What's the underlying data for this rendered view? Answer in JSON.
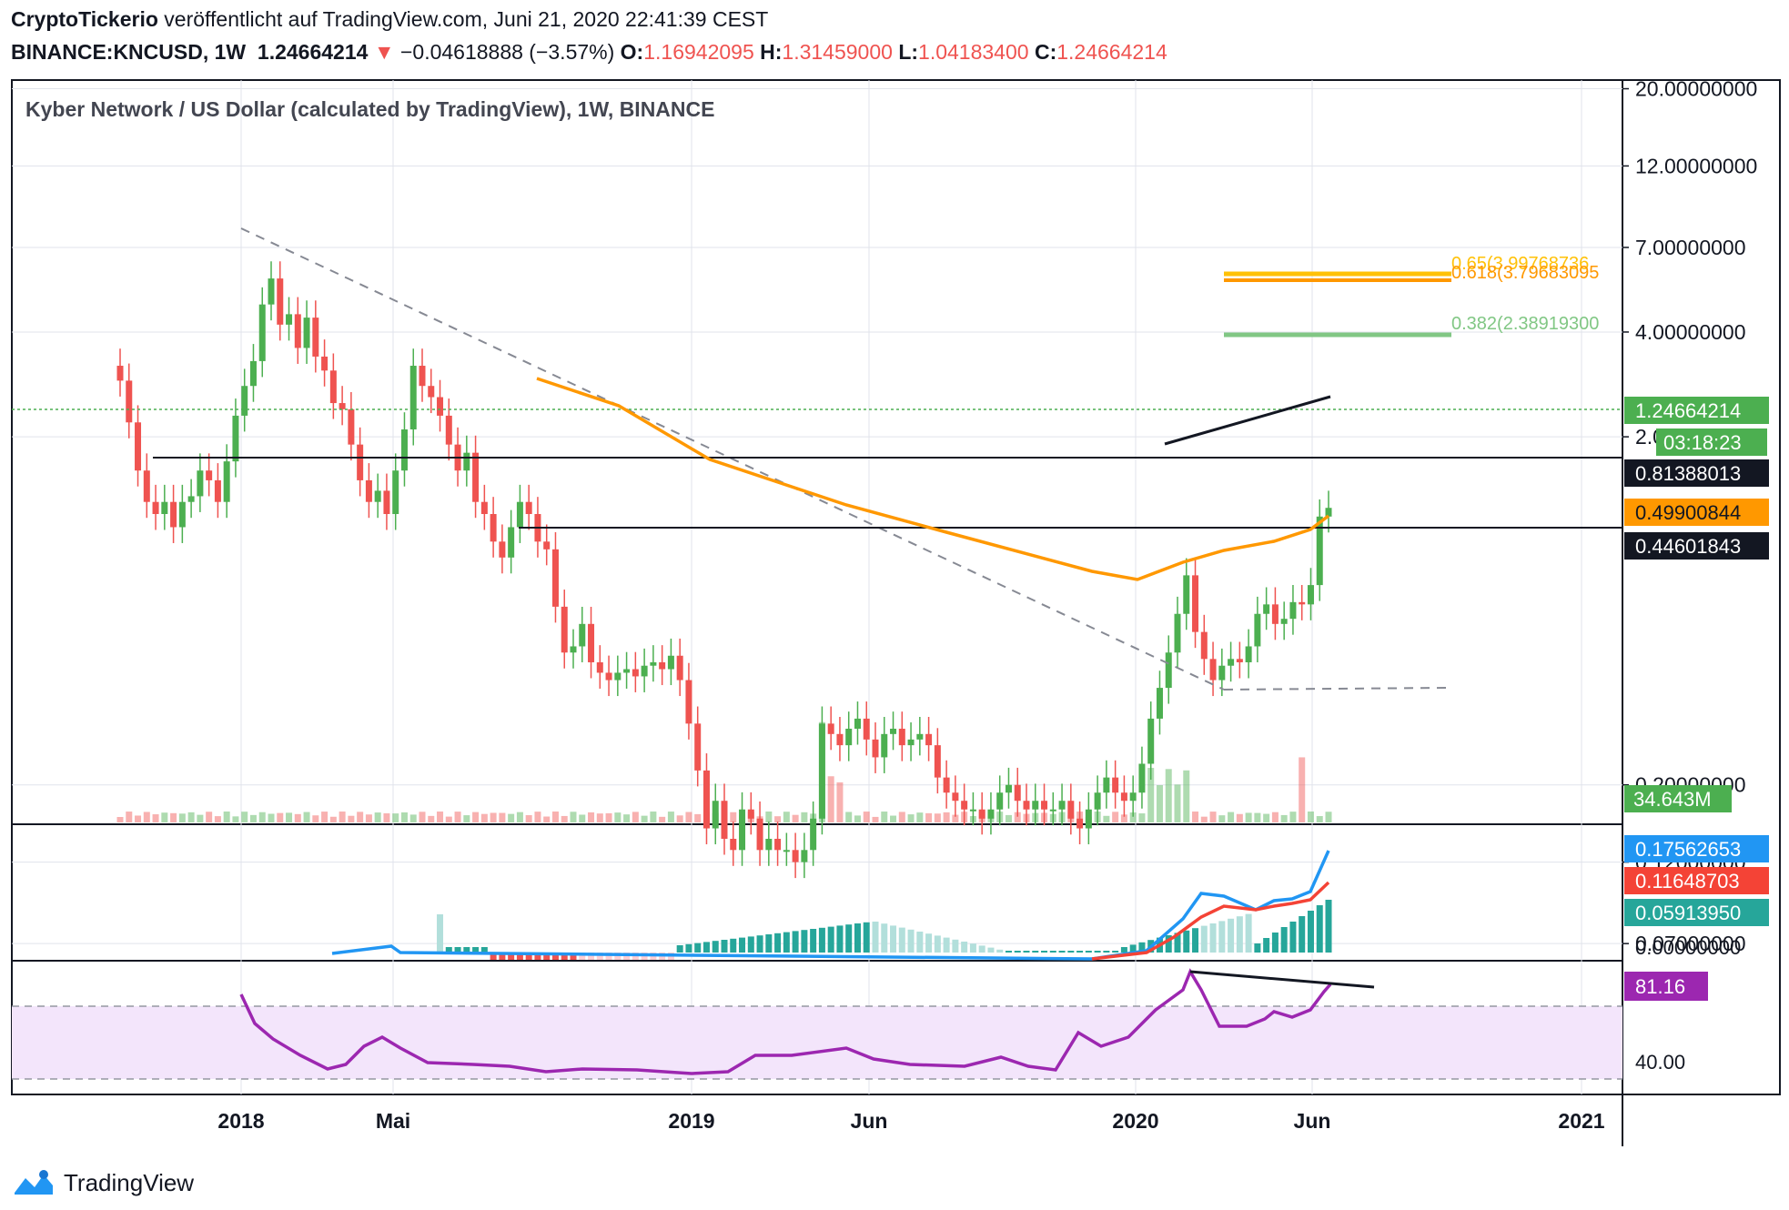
{
  "header": {
    "author": "CryptoTickerio",
    "published": "veröffentlicht auf TradingView.com, Juni 21, 2020 22:41:39 CEST",
    "symbol": "BINANCE:KNCUSD, 1W",
    "last": "1.24664214",
    "arrow": "▼",
    "change": "−0.04618888 (−3.57%)",
    "o_label": "O:",
    "o": "1.16942095",
    "h_label": "H:",
    "h": "1.31459000",
    "l_label": "L:",
    "l": "1.04183400",
    "c_label": "C:",
    "c": "1.24664214"
  },
  "legend": "Kyber Network / US Dollar (calculated by TradingView), 1W, BINANCE",
  "price_axis": [
    "20.00000000",
    "12.00000000",
    "7.00000000",
    "4.00000000",
    "2.00000000",
    "0.20000000",
    "0.12000000",
    "0.07000000"
  ],
  "badges": {
    "price": "1.24664214",
    "countdown": "03:18:23",
    "level1": "0.81388013",
    "ma": "0.49900844",
    "level2": "0.44601843",
    "volume": "34.643M",
    "macd": "0.17562653",
    "signal": "0.11648703",
    "hist": "0.05913950",
    "macd_zero": "0.00000000",
    "rsi": "81.16",
    "rsi_level": "40.00"
  },
  "fib": {
    "f618": "0.618(3.79683095",
    "f65": "0.65(3.99768736",
    "f382": "0.382(2.38919300"
  },
  "time_axis": [
    "2018",
    "Mai",
    "2019",
    "Jun",
    "2020",
    "Jun",
    "2021"
  ],
  "footer": {
    "brand": "TradingView"
  },
  "colors": {
    "up": "#26a69a",
    "down": "#ef5350",
    "candle_up": "#4caf50",
    "ma": "#ff9800",
    "macd": "#2196f3",
    "signal": "#f44336",
    "rsi": "#9c27b0",
    "fib618": "#ff9800",
    "fib65": "#ffc107",
    "fib382": "#81c784"
  },
  "chart_data": [
    {
      "type": "candlestick",
      "title": "Kyber Network / US Dollar (calculated by TradingView), 1W, BINANCE",
      "scale": "log",
      "ylim": [
        0.05,
        25
      ],
      "x_ticks": [
        "2018",
        "Mai",
        "2019",
        "Jun",
        "2020",
        "Jun",
        "2021"
      ],
      "grid": true,
      "close_weekly": [
        2.9,
        2.2,
        1.6,
        1.3,
        1.2,
        1.3,
        1.1,
        1.3,
        1.35,
        1.6,
        1.5,
        1.3,
        1.7,
        2.3,
        2.8,
        3.3,
        4.8,
        5.7,
        4.2,
        4.5,
        3.6,
        4.4,
        3.4,
        3.1,
        2.5,
        2.4,
        1.9,
        1.5,
        1.3,
        1.4,
        1.2,
        1.6,
        2.1,
        3.2,
        2.8,
        2.6,
        2.3,
        1.9,
        1.6,
        1.8,
        1.3,
        1.2,
        1.0,
        0.9,
        1.1,
        1.3,
        1.2,
        1.0,
        0.95,
        0.65,
        0.48,
        0.5,
        0.58,
        0.45,
        0.42,
        0.4,
        0.42,
        0.43,
        0.41,
        0.44,
        0.45,
        0.43,
        0.47,
        0.4,
        0.3,
        0.22,
        0.15,
        0.18,
        0.14,
        0.13,
        0.17,
        0.16,
        0.13,
        0.14,
        0.13,
        0.13,
        0.12,
        0.13,
        0.16,
        0.3,
        0.28,
        0.26,
        0.29,
        0.31,
        0.27,
        0.24,
        0.28,
        0.29,
        0.26,
        0.27,
        0.28,
        0.26,
        0.21,
        0.19,
        0.18,
        0.17,
        0.17,
        0.16,
        0.17,
        0.19,
        0.2,
        0.18,
        0.17,
        0.18,
        0.17,
        0.17,
        0.18,
        0.16,
        0.15,
        0.17,
        0.19,
        0.21,
        0.19,
        0.18,
        0.19,
        0.23,
        0.31,
        0.38,
        0.48,
        0.62,
        0.8,
        0.55,
        0.46,
        0.4,
        0.44,
        0.46,
        0.45,
        0.5,
        0.62,
        0.66,
        0.58,
        0.6,
        0.67,
        0.66,
        0.75,
        1.18,
        1.25
      ],
      "horizontal_levels": [
        0.81388013,
        0.44601843
      ],
      "last": 1.24664214
    },
    {
      "type": "line",
      "title": "MACD",
      "series": [
        {
          "values": [
            0.0,
            0.005,
            0.02,
            0.05,
            0.08,
            0.1,
            0.09,
            0.085,
            0.09,
            0.1,
            0.13,
            0.17562653
          ]
        },
        {
          "values": [
            0.0,
            0.002,
            0.008,
            0.02,
            0.04,
            0.06,
            0.075,
            0.08,
            0.085,
            0.09,
            0.1,
            0.11648703
          ]
        }
      ],
      "histogram_last": 0.0591395
    },
    {
      "type": "line",
      "title": "RSI",
      "ylim": [
        20,
        100
      ],
      "levels": [
        70,
        30
      ],
      "last": 81.16
    }
  ]
}
